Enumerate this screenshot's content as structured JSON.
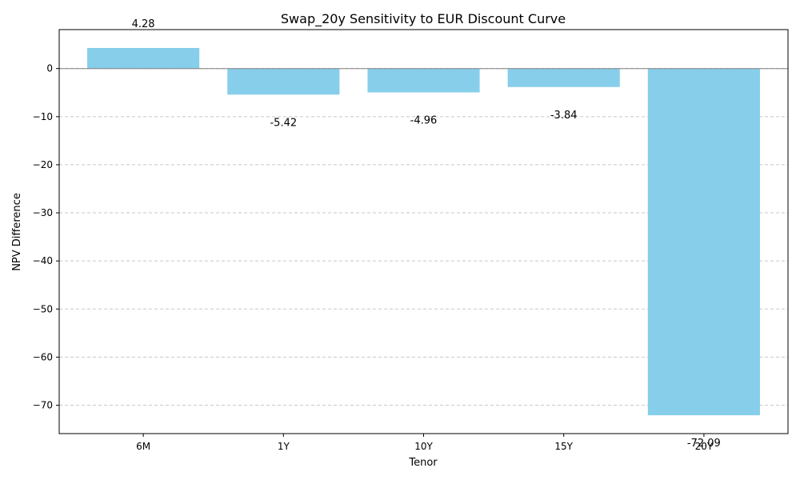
{
  "chart_data": {
    "type": "bar",
    "title": "Swap_20y Sensitivity to EUR Discount Curve",
    "xlabel": "Tenor",
    "ylabel": "NPV Difference",
    "categories": [
      "6M",
      "1Y",
      "10Y",
      "15Y",
      "20Y"
    ],
    "values": [
      4.28,
      -5.42,
      -4.96,
      -3.84,
      -72.09
    ],
    "data_labels": [
      "4.28",
      "-5.42",
      "-4.96",
      "-3.84",
      "-72.09"
    ],
    "ylim": [
      -75.9,
      8.1
    ],
    "yticks": [
      0,
      -10,
      -20,
      -30,
      -40,
      -50,
      -60,
      -70
    ],
    "ytick_labels": [
      "0",
      "−10",
      "−20",
      "−30",
      "−40",
      "−50",
      "−60",
      "−70"
    ],
    "grid": "y-dashed",
    "zero_line": true,
    "colors": {
      "bar": "#87ceeb",
      "grid": "#c8c8c8",
      "zero_line": "#808080",
      "axis": "#000000"
    }
  }
}
